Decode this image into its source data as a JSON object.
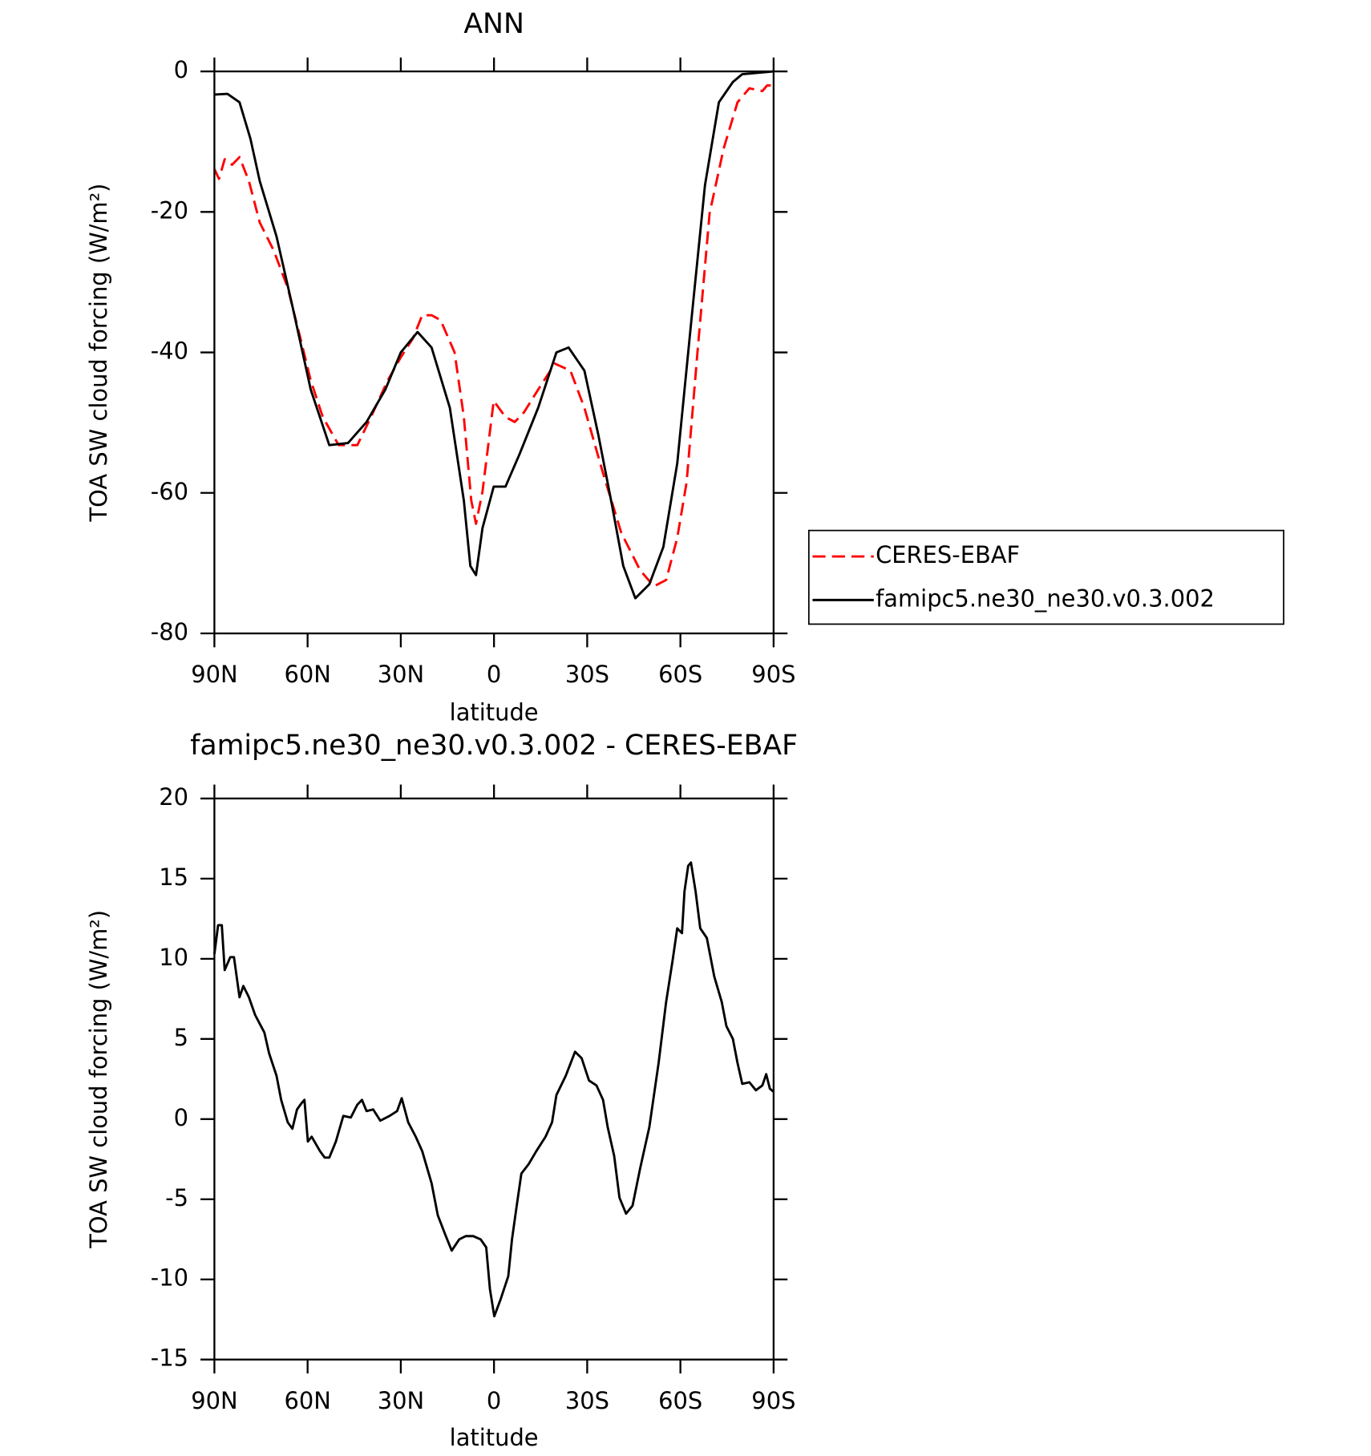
{
  "chart_data": [
    {
      "type": "line",
      "title": "ANN",
      "xlabel": "latitude",
      "ylabel": "TOA SW cloud forcing (W/m²)",
      "xlim": [
        90,
        -90
      ],
      "ylim": [
        -80,
        0
      ],
      "xticks": [
        {
          "value": 90,
          "label": "90N"
        },
        {
          "value": 60,
          "label": "60N"
        },
        {
          "value": 30,
          "label": "30N"
        },
        0,
        {
          "value": -30,
          "label": "30S"
        },
        {
          "value": -60,
          "label": "60S"
        },
        {
          "value": -90,
          "label": "90S"
        }
      ],
      "yticks": [
        0,
        -20,
        -40,
        -60,
        -80
      ],
      "legend": "right",
      "series": [
        {
          "name": "CERES-EBAF",
          "color": "#ff0000",
          "dash": "dashed",
          "x": [
            90,
            88.5,
            86.7,
            84.3,
            81.9,
            78.9,
            75.4,
            70.9,
            66.4,
            61.9,
            59,
            55.1,
            50,
            44,
            39.6,
            34.2,
            30,
            26.1,
            23.1,
            20.1,
            17.2,
            12.7,
            9.7,
            7.3,
            5.8,
            3.7,
            0.1,
            -3.7,
            -6.7,
            -9.7,
            -14.2,
            -19.6,
            -24.6,
            -29.1,
            -35.1,
            -41,
            -47,
            -51.5,
            -55.4,
            -59,
            -62,
            -65.5,
            -69.4,
            -73.9,
            -78.4,
            -82.2,
            -86.4,
            -87.9,
            -90
          ],
          "values": [
            -13.9,
            -15.3,
            -12.5,
            -13.3,
            -12.2,
            -15.6,
            -21.5,
            -25.5,
            -30.8,
            -38.7,
            -44,
            -49.2,
            -53.2,
            -53.2,
            -49.2,
            -44,
            -40.7,
            -38,
            -34.7,
            -34.7,
            -35.4,
            -40,
            -49.2,
            -61.1,
            -64.4,
            -59.8,
            -46.9,
            -49.2,
            -49.9,
            -48.5,
            -45.3,
            -41.6,
            -42.6,
            -47.9,
            -57.2,
            -65.7,
            -71,
            -73.3,
            -72.4,
            -66.4,
            -58.5,
            -40,
            -20.2,
            -11,
            -4.4,
            -2.4,
            -2.8,
            -2,
            -2
          ]
        },
        {
          "name": "famipc5.ne30_ne30.v0.3.002",
          "color": "#000000",
          "dash": "solid",
          "x": [
            90,
            85.8,
            81.9,
            78.4,
            75.4,
            70,
            64.9,
            59,
            53,
            47,
            41,
            35,
            30,
            24.6,
            20.1,
            14.2,
            9.7,
            7.6,
            5.8,
            3.7,
            0.1,
            -3.7,
            -8.2,
            -14.2,
            -20.1,
            -24,
            -29.1,
            -33.6,
            -38,
            -41.6,
            -45.5,
            -50,
            -54.5,
            -59,
            -63.4,
            -67.9,
            -72.4,
            -76.9,
            -79.9,
            -90
          ],
          "values": [
            -3.3,
            -3.2,
            -4.4,
            -9.6,
            -15.6,
            -23.5,
            -33.4,
            -45.3,
            -53.2,
            -52.9,
            -49.9,
            -45.3,
            -40,
            -37.1,
            -39.3,
            -47.9,
            -61.1,
            -70.4,
            -71.7,
            -65,
            -59.1,
            -59.1,
            -54.5,
            -47.9,
            -40,
            -39.3,
            -42.6,
            -51.8,
            -61.8,
            -70.4,
            -75,
            -73,
            -67.7,
            -55.8,
            -36,
            -16.2,
            -4.4,
            -1.5,
            -0.4,
            0
          ]
        }
      ]
    },
    {
      "type": "line",
      "title": "famipc5.ne30_ne30.v0.3.002 - CERES-EBAF",
      "xlabel": "latitude",
      "ylabel": "TOA SW cloud forcing (W/m²)",
      "xlim": [
        90,
        -90
      ],
      "ylim": [
        -15,
        20
      ],
      "xticks": [
        {
          "value": 90,
          "label": "90N"
        },
        {
          "value": 60,
          "label": "60N"
        },
        {
          "value": 30,
          "label": "30N"
        },
        0,
        {
          "value": -30,
          "label": "30S"
        },
        {
          "value": -60,
          "label": "60S"
        },
        {
          "value": -90,
          "label": "90S"
        }
      ],
      "yticks": [
        -15,
        -10,
        -5,
        0,
        5,
        10,
        15,
        20
      ],
      "color": "#000000",
      "x": [
        90,
        88.8,
        87.6,
        86.7,
        84.9,
        83.7,
        81.9,
        80.7,
        78.9,
        76.9,
        73.9,
        72.4,
        70,
        68.5,
        66.4,
        64.9,
        63.4,
        61.9,
        61,
        59.9,
        58.7,
        56,
        54.5,
        53,
        50.9,
        48.5,
        46.1,
        44,
        42.5,
        41,
        38.9,
        36.6,
        33.6,
        31.2,
        29.7,
        27.6,
        25.2,
        23.1,
        20.1,
        18.1,
        15.7,
        13.6,
        11.2,
        9.1,
        6.7,
        4.3,
        2.5,
        1.3,
        -0.1,
        -2.2,
        -4.6,
        -5.8,
        -7.3,
        -8.8,
        -11.2,
        -13.6,
        -16.6,
        -18.7,
        -20.1,
        -23.1,
        -26.1,
        -28.2,
        -30.6,
        -33,
        -35.1,
        -36.6,
        -38.7,
        -40.4,
        -42.5,
        -44.6,
        -47,
        -50,
        -53,
        -55.4,
        -57.5,
        -59,
        -60.5,
        -61.3,
        -62.5,
        -63.4,
        -64.9,
        -66.4,
        -68.5,
        -70.9,
        -73.3,
        -74.8,
        -76.9,
        -78.4,
        -79.9,
        -82.2,
        -84.3,
        -86.4,
        -87.6,
        -88.8,
        -90
      ],
      "values": [
        10.3,
        12.1,
        12.1,
        9.3,
        10.1,
        10.1,
        7.6,
        8.3,
        7.6,
        6.5,
        5.4,
        4.1,
        2.7,
        1.2,
        -0.2,
        -0.6,
        0.6,
        1.0,
        1.2,
        -1.4,
        -1.1,
        -2.0,
        -2.4,
        -2.4,
        -1.4,
        0.2,
        0.1,
        0.9,
        1.2,
        0.5,
        0.6,
        -0.1,
        0.2,
        0.5,
        1.3,
        -0.2,
        -1.1,
        -2.0,
        -4.0,
        -6.0,
        -7.2,
        -8.2,
        -7.5,
        -7.3,
        -7.3,
        -7.5,
        -8.0,
        -10.6,
        -12.3,
        -11.2,
        -9.8,
        -7.5,
        -5.4,
        -3.4,
        -2.8,
        -2.0,
        -1.1,
        -0.2,
        1.5,
        2.7,
        4.2,
        3.8,
        2.4,
        2.1,
        1.2,
        -0.5,
        -2.3,
        -4.9,
        -5.9,
        -5.4,
        -3.1,
        -0.5,
        3.5,
        7.3,
        9.9,
        11.9,
        11.6,
        14.2,
        15.8,
        16.0,
        14.2,
        11.9,
        11.3,
        8.9,
        7.3,
        5.8,
        5.0,
        3.5,
        2.2,
        2.3,
        1.8,
        2.1,
        2.8,
        1.9,
        1.7
      ]
    }
  ]
}
